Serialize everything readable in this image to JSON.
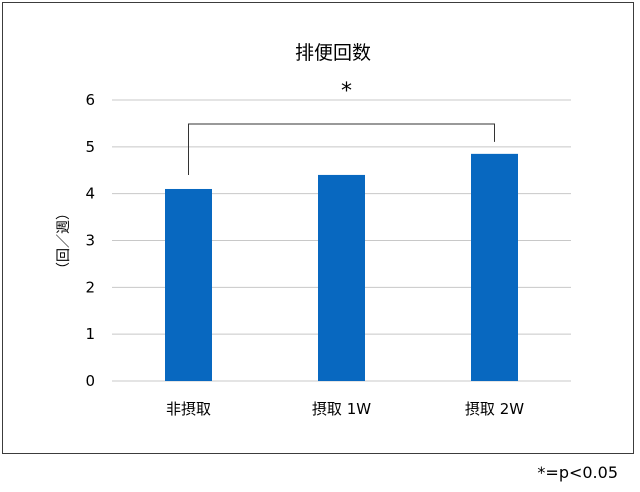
{
  "chart_data": {
    "type": "bar",
    "title": "排便回数",
    "ylabel": "（回／週）",
    "xlabel": "",
    "categories": [
      "非摂取",
      "摂取 1W",
      "摂取 2W"
    ],
    "values": [
      4.1,
      4.4,
      4.85
    ],
    "ylim": [
      0,
      6
    ],
    "yticks": [
      0,
      1,
      2,
      3,
      4,
      5,
      6
    ],
    "grid": true,
    "legend": "none",
    "bar_color": "#0868c0",
    "significance": {
      "from_index": 0,
      "to_index": 2,
      "label": "*"
    }
  },
  "footnote": "*=p<0.05"
}
